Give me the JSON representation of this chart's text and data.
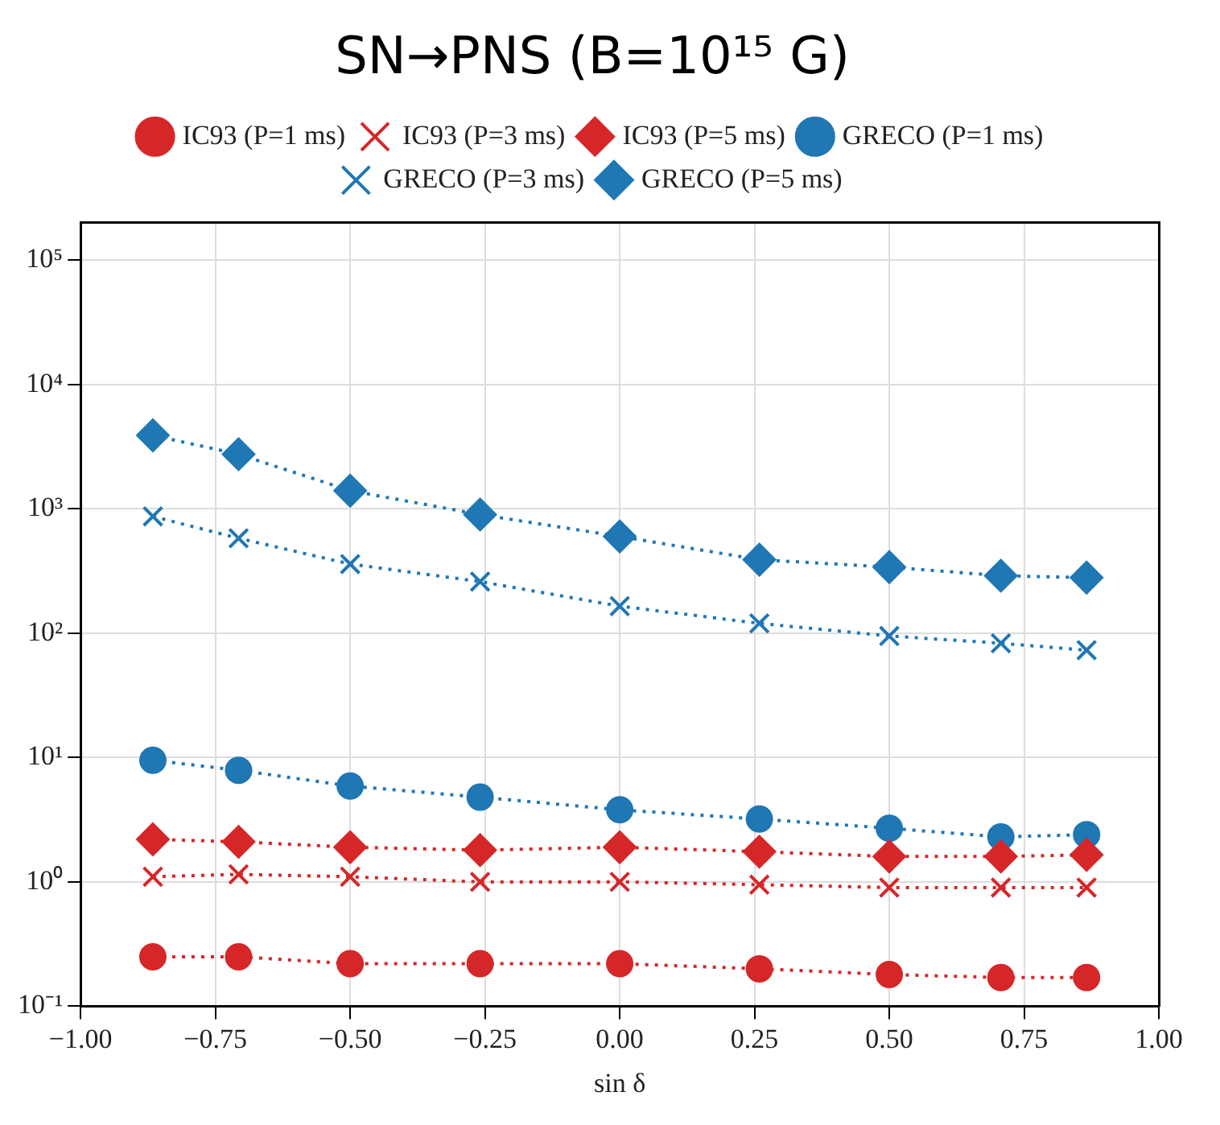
{
  "chart_data": {
    "type": "line",
    "title": "SN→PNS (B=10¹⁵ G)",
    "xlabel": "sin δ",
    "x": [
      -0.866,
      -0.707,
      -0.5,
      -0.259,
      0,
      0.259,
      0.5,
      0.707,
      0.866
    ],
    "xlim": [
      -1,
      1
    ],
    "xticks": [
      {
        "value": -1,
        "label": "−1.00"
      },
      {
        "value": -0.75,
        "label": "−0.75"
      },
      {
        "value": -0.5,
        "label": "−0.50"
      },
      {
        "value": -0.25,
        "label": "−0.25"
      },
      {
        "value": 0,
        "label": "0.00"
      },
      {
        "value": 0.25,
        "label": "0.25"
      },
      {
        "value": 0.5,
        "label": "0.50"
      },
      {
        "value": 0.75,
        "label": "0.75"
      },
      {
        "value": 1,
        "label": "1.00"
      }
    ],
    "log": "y",
    "ylim": [
      0.1,
      200000
    ],
    "yticks": [
      {
        "value": 0.1,
        "label": "10⁻¹"
      },
      {
        "value": 1,
        "label": "10⁰"
      },
      {
        "value": 10,
        "label": "10¹"
      },
      {
        "value": 100,
        "label": "10²"
      },
      {
        "value": 1000,
        "label": "10³"
      },
      {
        "value": 10000,
        "label": "10⁴"
      },
      {
        "value": 100000,
        "label": "10⁵"
      }
    ],
    "grid": true,
    "legend": "top",
    "line_style": "dotted",
    "series": [
      {
        "name": "IC93 (P=1 ms)",
        "color": "#d62728",
        "marker": "circle",
        "values": [
          0.25,
          0.25,
          0.22,
          0.22,
          0.22,
          0.2,
          0.18,
          0.17,
          0.17
        ]
      },
      {
        "name": "IC93 (P=3 ms)",
        "color": "#d62728",
        "marker": "cross",
        "values": [
          1.1,
          1.15,
          1.1,
          1.0,
          1.0,
          0.95,
          0.9,
          0.9,
          0.9
        ]
      },
      {
        "name": "IC93 (P=5 ms)",
        "color": "#d62728",
        "marker": "diamond",
        "values": [
          2.2,
          2.1,
          1.9,
          1.8,
          1.9,
          1.75,
          1.6,
          1.6,
          1.65
        ]
      },
      {
        "name": "GRECO (P=1 ms)",
        "color": "#1f77b4",
        "marker": "circle",
        "values": [
          9.5,
          7.9,
          5.9,
          4.8,
          3.8,
          3.2,
          2.7,
          2.3,
          2.4
        ]
      },
      {
        "name": "GRECO (P=3 ms)",
        "color": "#1f77b4",
        "marker": "cross",
        "values": [
          870,
          580,
          360,
          260,
          165,
          120,
          95,
          83,
          73
        ]
      },
      {
        "name": "GRECO (P=5 ms)",
        "color": "#1f77b4",
        "marker": "diamond",
        "values": [
          3900,
          2750,
          1400,
          900,
          600,
          390,
          340,
          290,
          280
        ]
      }
    ]
  }
}
